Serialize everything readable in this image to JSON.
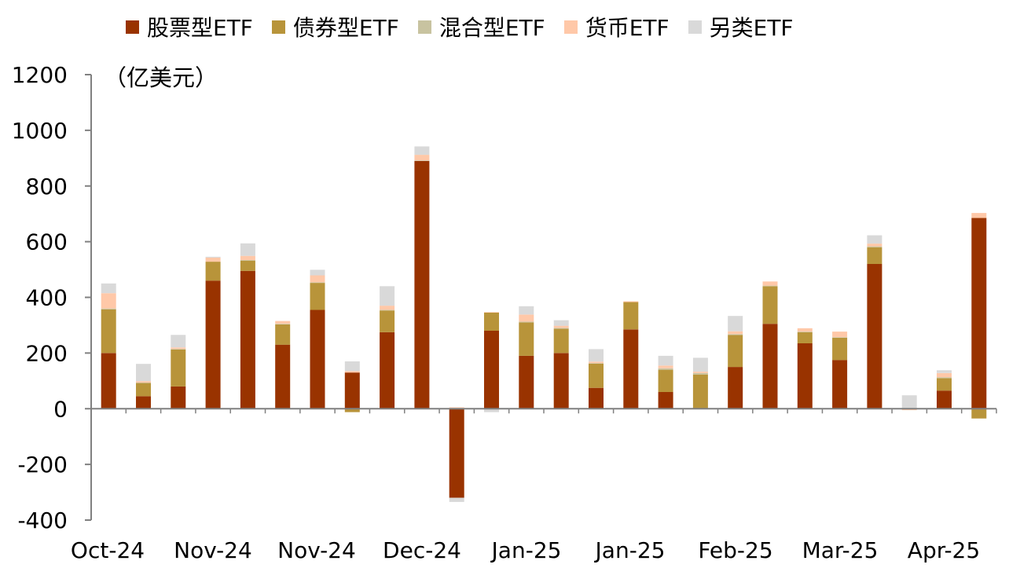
{
  "chart_data": {
    "type": "bar",
    "stacked": true,
    "unit_label": "（亿美元）",
    "x_tick_labels": [
      "Oct-24",
      "Nov-24",
      "Nov-24",
      "Dec-24",
      "Jan-25",
      "Jan-25",
      "Feb-25",
      "Mar-25",
      "Apr-25"
    ],
    "y_ticks": [
      1200,
      1000,
      800,
      600,
      400,
      200,
      0,
      -200,
      -400
    ],
    "ylim": [
      -400,
      1200
    ],
    "legend_position": "top",
    "bar_count": 26,
    "series": [
      {
        "name": "股票型ETF",
        "color": "#993300",
        "values": [
          200,
          45,
          80,
          460,
          495,
          230,
          355,
          130,
          275,
          890,
          -320,
          280,
          190,
          200,
          75,
          285,
          60,
          0,
          150,
          305,
          235,
          175,
          520,
          0,
          65,
          685
        ]
      },
      {
        "name": "债券型ETF",
        "color": "#B8943A",
        "values": [
          157,
          47,
          133,
          68,
          37,
          73,
          97,
          -12,
          78,
          0,
          0,
          65,
          120,
          87,
          87,
          98,
          80,
          123,
          115,
          135,
          40,
          80,
          60,
          0,
          45,
          -35
        ]
      },
      {
        "name": "混合型ETF",
        "color": "#C8C3A0",
        "values": [
          3,
          2,
          2,
          0,
          2,
          2,
          2,
          0,
          2,
          2,
          0,
          0,
          3,
          3,
          2,
          0,
          5,
          5,
          3,
          2,
          2,
          2,
          3,
          0,
          3,
          0
        ]
      },
      {
        "name": "货币ETF",
        "color": "#FFC8A8",
        "values": [
          55,
          5,
          5,
          15,
          15,
          10,
          25,
          5,
          15,
          20,
          5,
          2,
          25,
          8,
          5,
          3,
          10,
          5,
          10,
          15,
          12,
          20,
          10,
          -5,
          15,
          18
        ]
      },
      {
        "name": "另类ETF",
        "color": "#D9D9D9",
        "values": [
          35,
          62,
          45,
          3,
          45,
          0,
          20,
          35,
          70,
          30,
          -15,
          -12,
          30,
          20,
          45,
          0,
          35,
          50,
          55,
          0,
          0,
          0,
          30,
          48,
          10,
          0
        ]
      }
    ]
  }
}
